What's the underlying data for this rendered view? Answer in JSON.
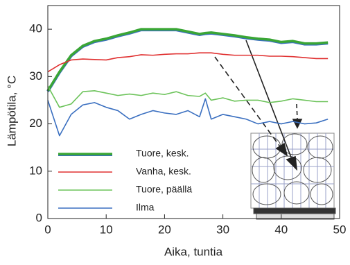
{
  "chart_data": {
    "type": "line",
    "x_label": "Aika, tuntia",
    "y_label": "Lämpötila, °C",
    "x": [
      0,
      2,
      4,
      6,
      8,
      10,
      12,
      14,
      16,
      18,
      20,
      22,
      24,
      26,
      27,
      28,
      30,
      32,
      34,
      36,
      38,
      40,
      42,
      44,
      46,
      48
    ],
    "series": [
      {
        "name": "Tuore, kesk.",
        "color": "#3aa635",
        "values": [
          27,
          31,
          34.5,
          36.5,
          37.5,
          38,
          38.7,
          39.3,
          40,
          40,
          40,
          40,
          39.5,
          39,
          39.2,
          39.3,
          39,
          38.7,
          38.3,
          38,
          37.8,
          37.3,
          37.5,
          37,
          37,
          37.2
        ]
      },
      {
        "name": "Vanha, kesk.",
        "color": "#e03030",
        "values": [
          31,
          32.5,
          33.5,
          33.7,
          33.6,
          33.5,
          34,
          34.2,
          34.6,
          34.5,
          34.7,
          34.8,
          34.8,
          35,
          35,
          35,
          34.7,
          34.5,
          34.5,
          34.5,
          34.3,
          34.3,
          34.2,
          34,
          33.8,
          33.8
        ]
      },
      {
        "name": "Tuore,  päällä",
        "color": "#6cc35a",
        "values": [
          28,
          23.5,
          24.2,
          26.8,
          27,
          26.5,
          26,
          26.3,
          26,
          26.5,
          26.2,
          26.8,
          26,
          25.8,
          26.5,
          25,
          25.5,
          24.8,
          25,
          25,
          24.5,
          24.8,
          25.3,
          25,
          24.7,
          24.7
        ]
      },
      {
        "name": "Ilma",
        "color": "#3a6fc0",
        "values": [
          25,
          17.5,
          22,
          24,
          24.5,
          23.5,
          22.8,
          21,
          22,
          22.8,
          22.3,
          22,
          22.8,
          21.5,
          25.3,
          21,
          22,
          21.5,
          21,
          20,
          20.5,
          20,
          20.5,
          20,
          20.2,
          21
        ]
      }
    ],
    "xlim": [
      0,
      50
    ],
    "xticks": [
      0,
      10,
      20,
      30,
      40,
      50
    ],
    "ylim": [
      0,
      45
    ],
    "yticks": [
      0,
      10,
      20,
      30,
      40
    ]
  }
}
